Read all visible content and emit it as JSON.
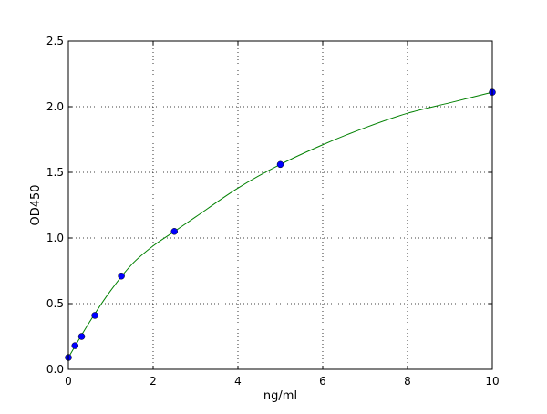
{
  "chart_data": {
    "type": "scatter",
    "title": "",
    "xlabel": "ng/ml",
    "ylabel": "OD450",
    "xlim": [
      0,
      10
    ],
    "ylim": [
      0,
      2.5
    ],
    "xticks": [
      "0",
      "2",
      "4",
      "6",
      "8",
      "10"
    ],
    "yticks": [
      "0.0",
      "0.5",
      "1.0",
      "1.5",
      "2.0",
      "2.5"
    ],
    "grid": true,
    "series": [
      {
        "type": "scatter",
        "color": "#0000ff",
        "x": [
          0,
          0.156,
          0.3125,
          0.625,
          1.25,
          2.5,
          5,
          10
        ],
        "y": [
          0.09,
          0.18,
          0.25,
          0.41,
          0.71,
          1.05,
          1.56,
          2.11
        ]
      },
      {
        "type": "line",
        "color": "#008000",
        "x": [
          0,
          0.5,
          1,
          1.5,
          2,
          2.5,
          3,
          4,
          5,
          6,
          7,
          8,
          9,
          10
        ],
        "y": [
          0.09,
          0.36,
          0.6,
          0.8,
          0.94,
          1.05,
          1.16,
          1.38,
          1.56,
          1.71,
          1.84,
          1.95,
          2.03,
          2.11
        ]
      }
    ]
  }
}
